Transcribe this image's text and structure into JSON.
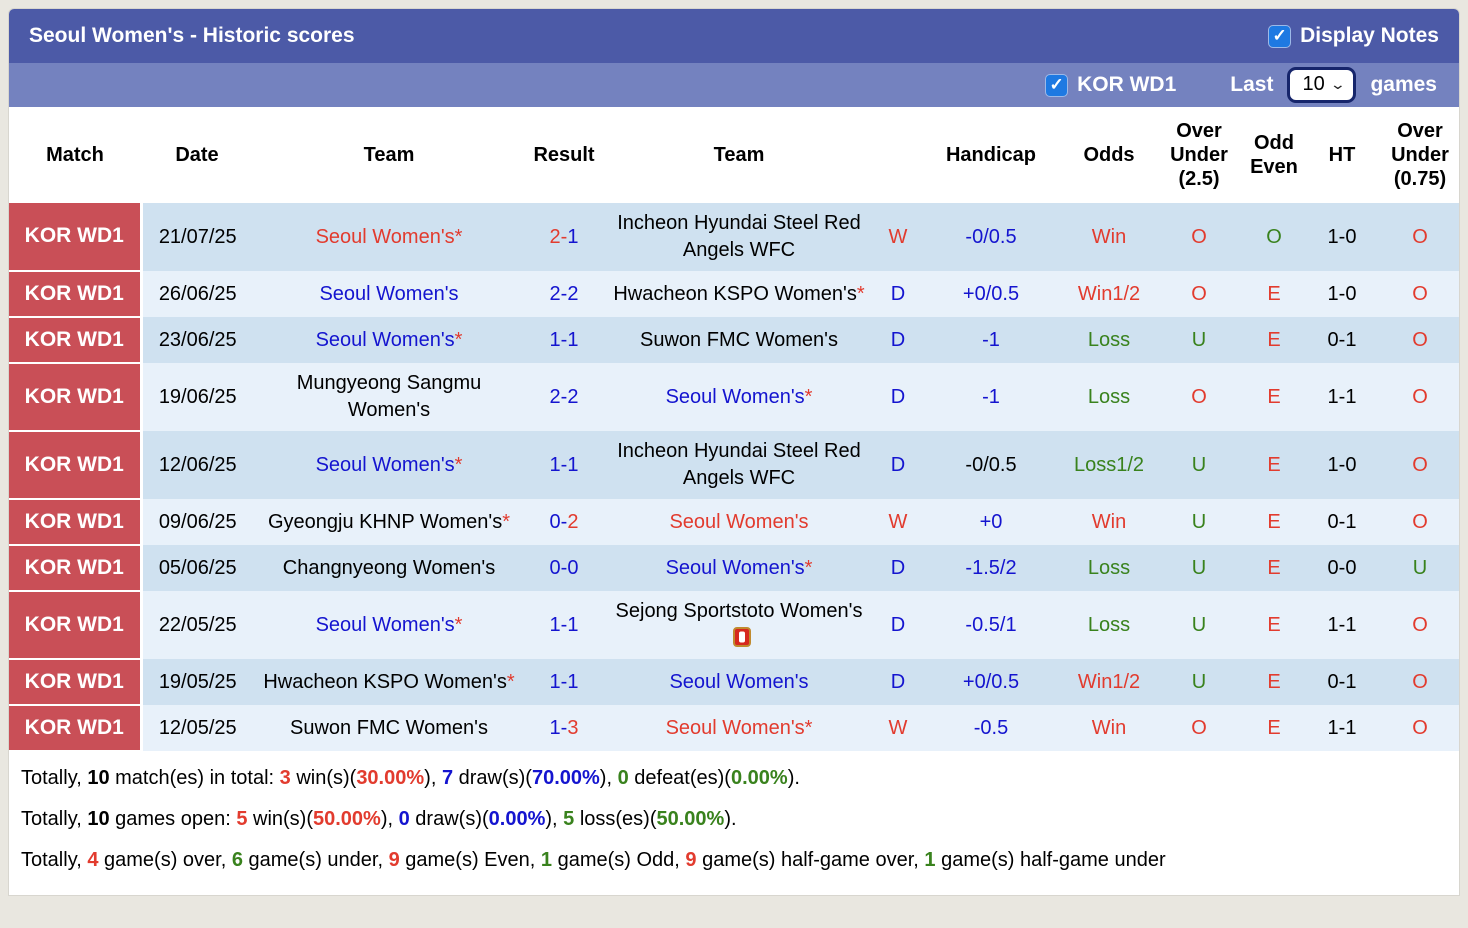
{
  "colors": {
    "red": "#e23b2e",
    "blue": "#1414cf",
    "green": "#39821d",
    "black": "#000000",
    "title_bar": "#4c5aa7",
    "sub_bar": "#7482bf",
    "league_cell_bg": "#c94f57",
    "checkbox_blue": "#1e79e2",
    "row_base_bg": "#cfe1f0",
    "row_alt_bg": "#e8f1fa"
  },
  "header": {
    "title": "Seoul Women's - Historic scores",
    "display_notes": {
      "label": "Display Notes",
      "checked": true,
      "check_glyph": "✓"
    },
    "league_filter": {
      "label": "KOR WD1",
      "checked": true,
      "check_glyph": "✓"
    },
    "last_label": "Last",
    "games_count": "10",
    "games_label": "games"
  },
  "table": {
    "headers": [
      "Match",
      "Date",
      "Team",
      "Result",
      "Team",
      "",
      "Handicap",
      "Odds",
      "Over\nUnder\n(2.5)",
      "Odd\nEven",
      "HT",
      "Over\nUnder\n(0.75)"
    ],
    "rows": [
      {
        "league": "KOR WD1",
        "date": "21/07/25",
        "home": {
          "name": "Seoul Women's",
          "star": true,
          "color": "red"
        },
        "result": {
          "home": "2",
          "away": "1",
          "home_color": "red",
          "away_color": "blue"
        },
        "away": {
          "name": "Incheon Hyundai Steel Red Angels WFC",
          "star": false,
          "color": "black"
        },
        "wdl": {
          "text": "W",
          "color": "red"
        },
        "handicap": {
          "text": "-0/0.5",
          "color": "blue"
        },
        "odds": {
          "text": "Win",
          "color": "red"
        },
        "over_under_2_5": {
          "text": "O",
          "color": "red"
        },
        "odd_even": {
          "text": "O",
          "color": "green"
        },
        "ht": "1-0",
        "over_under_0_75": {
          "text": "O",
          "color": "red"
        }
      },
      {
        "league": "KOR WD1",
        "date": "26/06/25",
        "home": {
          "name": "Seoul Women's",
          "star": false,
          "color": "blue"
        },
        "result": {
          "home": "2",
          "away": "2",
          "home_color": "blue",
          "away_color": "blue"
        },
        "away": {
          "name": "Hwacheon KSPO Women's",
          "star": true,
          "color": "black"
        },
        "wdl": {
          "text": "D",
          "color": "blue"
        },
        "handicap": {
          "text": "+0/0.5",
          "color": "blue"
        },
        "odds": {
          "text": "Win1/2",
          "color": "red"
        },
        "over_under_2_5": {
          "text": "O",
          "color": "red"
        },
        "odd_even": {
          "text": "E",
          "color": "red"
        },
        "ht": "1-0",
        "over_under_0_75": {
          "text": "O",
          "color": "red"
        }
      },
      {
        "league": "KOR WD1",
        "date": "23/06/25",
        "home": {
          "name": "Seoul Women's",
          "star": true,
          "color": "blue"
        },
        "result": {
          "home": "1",
          "away": "1",
          "home_color": "blue",
          "away_color": "blue"
        },
        "away": {
          "name": "Suwon FMC Women's",
          "star": false,
          "color": "black"
        },
        "wdl": {
          "text": "D",
          "color": "blue"
        },
        "handicap": {
          "text": "-1",
          "color": "blue"
        },
        "odds": {
          "text": "Loss",
          "color": "green"
        },
        "over_under_2_5": {
          "text": "U",
          "color": "green"
        },
        "odd_even": {
          "text": "E",
          "color": "red"
        },
        "ht": "0-1",
        "over_under_0_75": {
          "text": "O",
          "color": "red"
        }
      },
      {
        "league": "KOR WD1",
        "date": "19/06/25",
        "home": {
          "name": "Mungyeong Sangmu Women's",
          "star": false,
          "color": "black"
        },
        "result": {
          "home": "2",
          "away": "2",
          "home_color": "blue",
          "away_color": "blue"
        },
        "away": {
          "name": "Seoul Women's",
          "star": true,
          "color": "blue"
        },
        "wdl": {
          "text": "D",
          "color": "blue"
        },
        "handicap": {
          "text": "-1",
          "color": "blue"
        },
        "odds": {
          "text": "Loss",
          "color": "green"
        },
        "over_under_2_5": {
          "text": "O",
          "color": "red"
        },
        "odd_even": {
          "text": "E",
          "color": "red"
        },
        "ht": "1-1",
        "over_under_0_75": {
          "text": "O",
          "color": "red"
        }
      },
      {
        "league": "KOR WD1",
        "date": "12/06/25",
        "home": {
          "name": "Seoul Women's",
          "star": true,
          "color": "blue"
        },
        "result": {
          "home": "1",
          "away": "1",
          "home_color": "blue",
          "away_color": "blue"
        },
        "away": {
          "name": "Incheon Hyundai Steel Red Angels WFC",
          "star": false,
          "color": "black"
        },
        "wdl": {
          "text": "D",
          "color": "blue"
        },
        "handicap": {
          "text": "-0/0.5",
          "color": "black"
        },
        "odds": {
          "text": "Loss1/2",
          "color": "green"
        },
        "over_under_2_5": {
          "text": "U",
          "color": "green"
        },
        "odd_even": {
          "text": "E",
          "color": "red"
        },
        "ht": "1-0",
        "over_under_0_75": {
          "text": "O",
          "color": "red"
        }
      },
      {
        "league": "KOR WD1",
        "date": "09/06/25",
        "home": {
          "name": "Gyeongju KHNP Women's",
          "star": true,
          "color": "black"
        },
        "result": {
          "home": "0",
          "away": "2",
          "home_color": "blue",
          "away_color": "red"
        },
        "away": {
          "name": "Seoul Women's",
          "star": false,
          "color": "red"
        },
        "wdl": {
          "text": "W",
          "color": "red"
        },
        "handicap": {
          "text": "+0",
          "color": "blue"
        },
        "odds": {
          "text": "Win",
          "color": "red"
        },
        "over_under_2_5": {
          "text": "U",
          "color": "green"
        },
        "odd_even": {
          "text": "E",
          "color": "red"
        },
        "ht": "0-1",
        "over_under_0_75": {
          "text": "O",
          "color": "red"
        }
      },
      {
        "league": "KOR WD1",
        "date": "05/06/25",
        "home": {
          "name": "Changnyeong Women's",
          "star": false,
          "color": "black"
        },
        "result": {
          "home": "0",
          "away": "0",
          "home_color": "blue",
          "away_color": "blue"
        },
        "away": {
          "name": "Seoul Women's",
          "star": true,
          "color": "blue"
        },
        "wdl": {
          "text": "D",
          "color": "blue"
        },
        "handicap": {
          "text": "-1.5/2",
          "color": "blue"
        },
        "odds": {
          "text": "Loss",
          "color": "green"
        },
        "over_under_2_5": {
          "text": "U",
          "color": "green"
        },
        "odd_even": {
          "text": "E",
          "color": "red"
        },
        "ht": "0-0",
        "over_under_0_75": {
          "text": "U",
          "color": "green"
        }
      },
      {
        "league": "KOR WD1",
        "date": "22/05/25",
        "home": {
          "name": "Seoul Women's",
          "star": true,
          "color": "blue"
        },
        "result": {
          "home": "1",
          "away": "1",
          "home_color": "blue",
          "away_color": "blue"
        },
        "away": {
          "name": "Sejong Sportstoto Women's",
          "star": false,
          "color": "black",
          "icon": "red-card"
        },
        "wdl": {
          "text": "D",
          "color": "blue"
        },
        "handicap": {
          "text": "-0.5/1",
          "color": "blue"
        },
        "odds": {
          "text": "Loss",
          "color": "green"
        },
        "over_under_2_5": {
          "text": "U",
          "color": "green"
        },
        "odd_even": {
          "text": "E",
          "color": "red"
        },
        "ht": "1-1",
        "over_under_0_75": {
          "text": "O",
          "color": "red"
        }
      },
      {
        "league": "KOR WD1",
        "date": "19/05/25",
        "home": {
          "name": "Hwacheon KSPO Women's",
          "star": true,
          "color": "black"
        },
        "result": {
          "home": "1",
          "away": "1",
          "home_color": "blue",
          "away_color": "blue"
        },
        "away": {
          "name": "Seoul Women's",
          "star": false,
          "color": "blue"
        },
        "wdl": {
          "text": "D",
          "color": "blue"
        },
        "handicap": {
          "text": "+0/0.5",
          "color": "blue"
        },
        "odds": {
          "text": "Win1/2",
          "color": "red"
        },
        "over_under_2_5": {
          "text": "U",
          "color": "green"
        },
        "odd_even": {
          "text": "E",
          "color": "red"
        },
        "ht": "0-1",
        "over_under_0_75": {
          "text": "O",
          "color": "red"
        }
      },
      {
        "league": "KOR WD1",
        "date": "12/05/25",
        "home": {
          "name": "Suwon FMC Women's",
          "star": false,
          "color": "black"
        },
        "result": {
          "home": "1",
          "away": "3",
          "home_color": "blue",
          "away_color": "red"
        },
        "away": {
          "name": "Seoul Women's",
          "star": true,
          "color": "red"
        },
        "wdl": {
          "text": "W",
          "color": "red"
        },
        "handicap": {
          "text": "-0.5",
          "color": "blue"
        },
        "odds": {
          "text": "Win",
          "color": "red"
        },
        "over_under_2_5": {
          "text": "O",
          "color": "red"
        },
        "odd_even": {
          "text": "E",
          "color": "red"
        },
        "ht": "1-1",
        "over_under_0_75": {
          "text": "O",
          "color": "red"
        }
      }
    ]
  },
  "summary": [
    [
      {
        "text": "Totally, ",
        "color": "black"
      },
      {
        "text": "10",
        "color": "black",
        "bold": true
      },
      {
        "text": " match(es) in total: ",
        "color": "black"
      },
      {
        "text": "3",
        "color": "red",
        "bold": true
      },
      {
        "text": " win(s)(",
        "color": "black"
      },
      {
        "text": "30.00%",
        "color": "red",
        "bold": true
      },
      {
        "text": "), ",
        "color": "black"
      },
      {
        "text": "7",
        "color": "blue",
        "bold": true
      },
      {
        "text": " draw(s)(",
        "color": "black"
      },
      {
        "text": "70.00%",
        "color": "blue",
        "bold": true
      },
      {
        "text": "), ",
        "color": "black"
      },
      {
        "text": "0",
        "color": "green",
        "bold": true
      },
      {
        "text": " defeat(es)(",
        "color": "black"
      },
      {
        "text": "0.00%",
        "color": "green",
        "bold": true
      },
      {
        "text": ").",
        "color": "black"
      }
    ],
    [
      {
        "text": "Totally, ",
        "color": "black"
      },
      {
        "text": "10",
        "color": "black",
        "bold": true
      },
      {
        "text": " games open: ",
        "color": "black"
      },
      {
        "text": "5",
        "color": "red",
        "bold": true
      },
      {
        "text": " win(s)(",
        "color": "black"
      },
      {
        "text": "50.00%",
        "color": "red",
        "bold": true
      },
      {
        "text": "), ",
        "color": "black"
      },
      {
        "text": "0",
        "color": "blue",
        "bold": true
      },
      {
        "text": " draw(s)(",
        "color": "black"
      },
      {
        "text": "0.00%",
        "color": "blue",
        "bold": true
      },
      {
        "text": "), ",
        "color": "black"
      },
      {
        "text": "5",
        "color": "green",
        "bold": true
      },
      {
        "text": " loss(es)(",
        "color": "black"
      },
      {
        "text": "50.00%",
        "color": "green",
        "bold": true
      },
      {
        "text": ").",
        "color": "black"
      }
    ],
    [
      {
        "text": "Totally, ",
        "color": "black"
      },
      {
        "text": "4",
        "color": "red",
        "bold": true
      },
      {
        "text": " game(s) over, ",
        "color": "black"
      },
      {
        "text": "6",
        "color": "green",
        "bold": true
      },
      {
        "text": " game(s) under, ",
        "color": "black"
      },
      {
        "text": "9",
        "color": "red",
        "bold": true
      },
      {
        "text": " game(s) Even, ",
        "color": "black"
      },
      {
        "text": "1",
        "color": "green",
        "bold": true
      },
      {
        "text": " game(s) Odd, ",
        "color": "black"
      },
      {
        "text": "9",
        "color": "red",
        "bold": true
      },
      {
        "text": " game(s) half-game over, ",
        "color": "black"
      },
      {
        "text": "1",
        "color": "green",
        "bold": true
      },
      {
        "text": " game(s) half-game under",
        "color": "black"
      }
    ]
  ]
}
